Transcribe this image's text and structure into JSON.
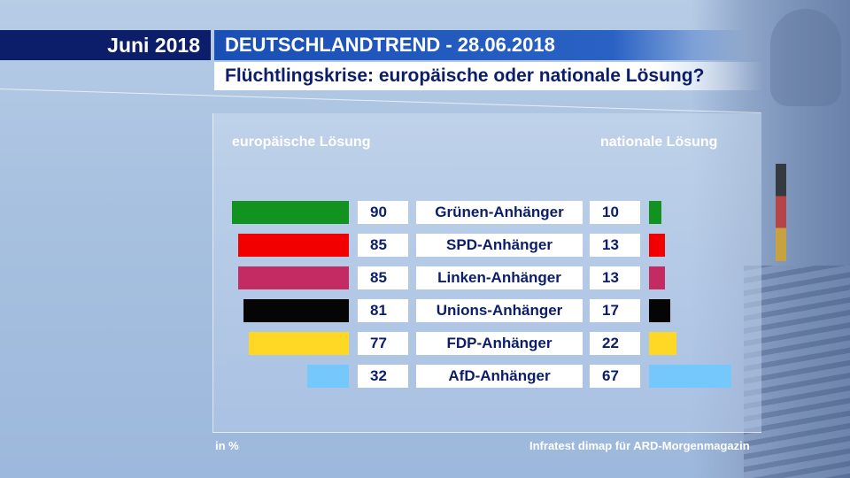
{
  "header": {
    "date": "Juni 2018",
    "title": "DEUTSCHLANDTREND - 28.06.2018",
    "subtitle": "Flüchtlingskrise: europäische oder nationale Lösung?"
  },
  "footer": {
    "unit": "in %",
    "source": "Infratest dimap für ARD-Morgenmagazin"
  },
  "colors": {
    "green": "#12921e",
    "red": "#f20000",
    "magenta": "#c52b63",
    "black": "#050505",
    "yellow": "#fed825",
    "lightblue": "#74c8fb"
  },
  "chart_data": {
    "type": "bar",
    "title": "Flüchtlingskrise: europäische oder nationale Lösung?",
    "unit": "in %",
    "categories": [
      "Grünen-Anhänger",
      "SPD-Anhänger",
      "Linken-Anhänger",
      "Unions-Anhänger",
      "FDP-Anhänger",
      "AfD-Anhänger"
    ],
    "series": [
      {
        "name": "europäische Lösung",
        "values": [
          90,
          85,
          85,
          81,
          77,
          32
        ]
      },
      {
        "name": "nationale Lösung",
        "values": [
          10,
          13,
          13,
          17,
          22,
          67
        ]
      }
    ],
    "bar_colors": [
      "#12921e",
      "#f20000",
      "#c52b63",
      "#050505",
      "#fed825",
      "#74c8fb"
    ],
    "xlim": [
      0,
      100
    ],
    "legend": "column headers"
  }
}
